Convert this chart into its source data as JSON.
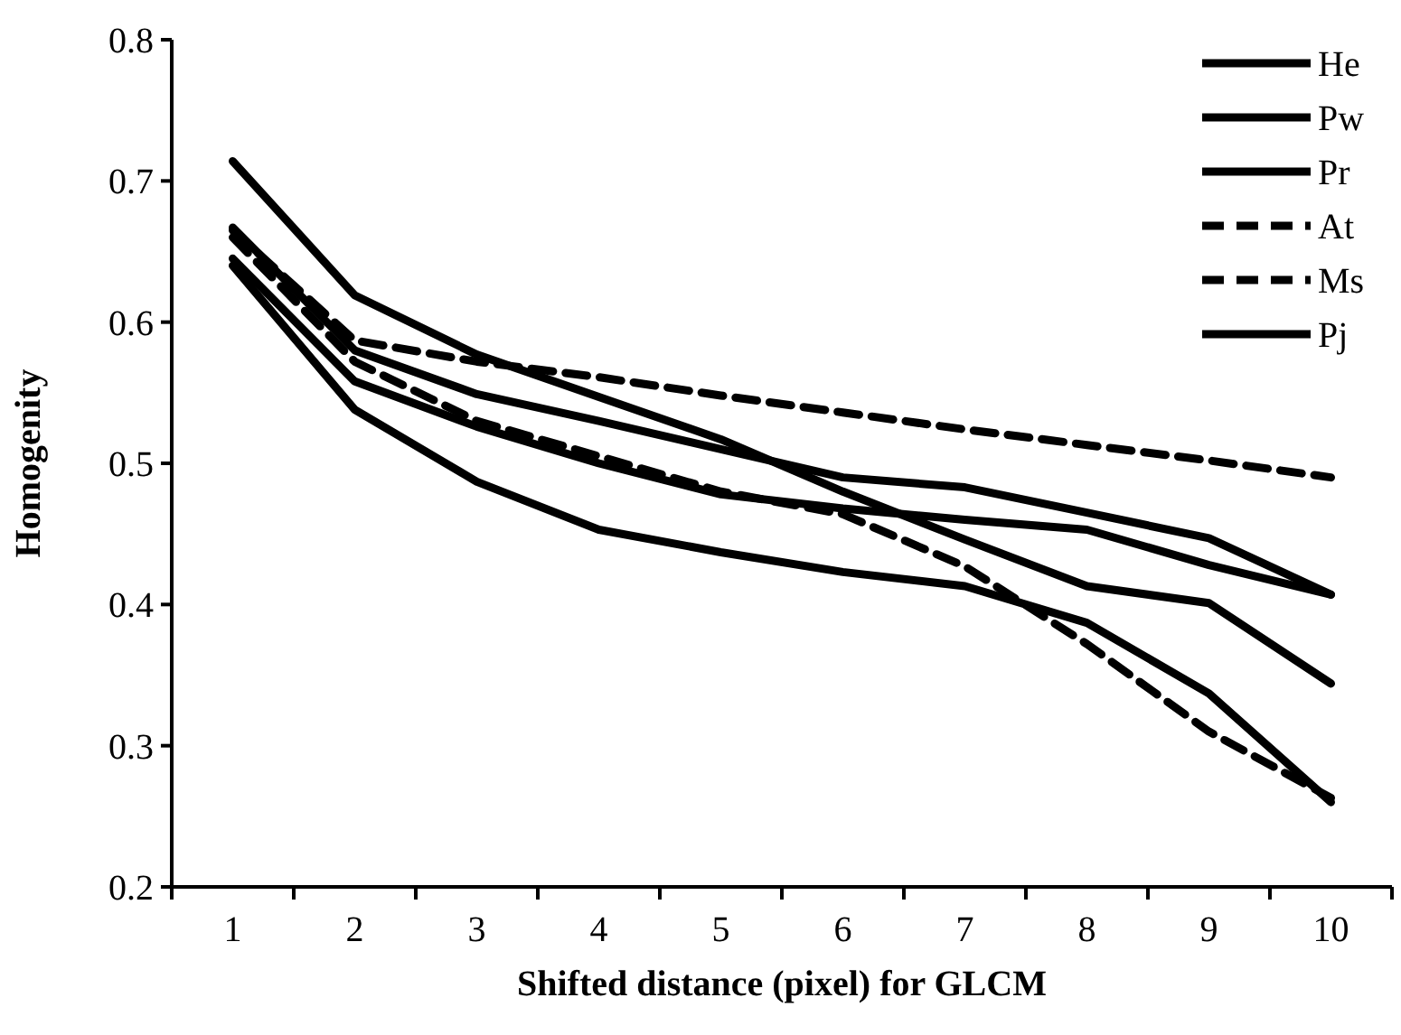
{
  "chart_data": {
    "type": "line",
    "xlabel": "Shifted distance (pixel) for GLCM",
    "ylabel": "Homogenity",
    "categories": [
      "1",
      "2",
      "3",
      "4",
      "5",
      "6",
      "7",
      "8",
      "9",
      "10"
    ],
    "ylim": [
      0.2,
      0.8
    ],
    "yticks": [
      0.2,
      0.3,
      0.4,
      0.5,
      0.6,
      0.7,
      0.8
    ],
    "grid": false,
    "legend": "top right",
    "marker": "none",
    "series": [
      {
        "name": "He",
        "color": "#000000",
        "line_style": "solid",
        "values": [
          0.714,
          0.619,
          0.577,
          0.547,
          0.517,
          0.48,
          0.446,
          0.413,
          0.401,
          0.344
        ]
      },
      {
        "name": "Pw",
        "color": "#000000",
        "line_style": "solid",
        "values": [
          0.667,
          0.58,
          0.549,
          0.53,
          0.51,
          0.49,
          0.483,
          0.465,
          0.447,
          0.407
        ]
      },
      {
        "name": "Pr",
        "color": "#000000",
        "line_style": "solid",
        "values": [
          0.645,
          0.558,
          0.526,
          0.5,
          0.478,
          0.468,
          0.46,
          0.453,
          0.428,
          0.407
        ]
      },
      {
        "name": "At",
        "color": "#000000",
        "line_style": "dashed",
        "values": [
          0.665,
          0.587,
          0.572,
          0.561,
          0.548,
          0.536,
          0.524,
          0.513,
          0.502,
          0.49
        ]
      },
      {
        "name": "Ms",
        "color": "#000000",
        "line_style": "dashed",
        "values": [
          0.66,
          0.572,
          0.53,
          0.505,
          0.48,
          0.464,
          0.427,
          0.372,
          0.31,
          0.263
        ]
      },
      {
        "name": "Pj",
        "color": "#000000",
        "line_style": "solid",
        "values": [
          0.64,
          0.538,
          0.487,
          0.453,
          0.437,
          0.423,
          0.413,
          0.387,
          0.337,
          0.26
        ]
      }
    ]
  }
}
